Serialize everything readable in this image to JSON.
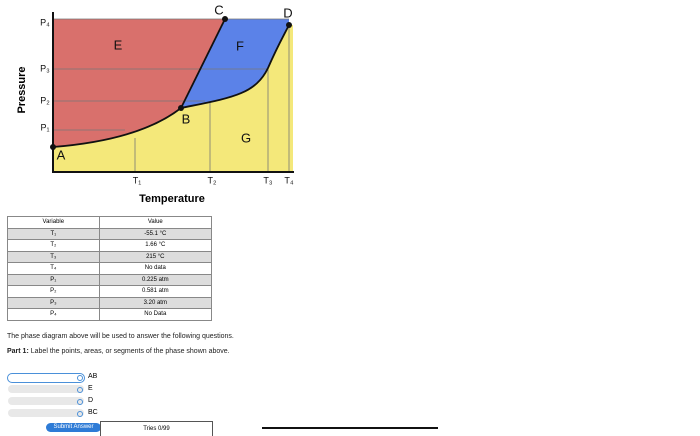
{
  "diagram": {
    "y_axis_label": "Pressure",
    "x_axis_label": "Temperature",
    "pressure_ticks": [
      "P₄",
      "P₃",
      "P₂",
      "P₁"
    ],
    "temperature_ticks": [
      "T₁",
      "T₂",
      "T₃",
      "T₄"
    ],
    "points": [
      "A",
      "B",
      "C",
      "D"
    ],
    "regions": [
      "E",
      "F",
      "G"
    ]
  },
  "table": {
    "header": [
      "Variable",
      "Value"
    ],
    "rows": [
      [
        "T₁",
        "-55.1 °C"
      ],
      [
        "T₂",
        "1.66 °C"
      ],
      [
        "T₃",
        "215 °C"
      ],
      [
        "T₄",
        "No data"
      ],
      [
        "P₁",
        "0.225 atm"
      ],
      [
        "P₂",
        "0.581 atm"
      ],
      [
        "P₃",
        "3.20 atm"
      ],
      [
        "P₄",
        "No Data"
      ]
    ]
  },
  "intro": "The phase diagram above will be used to answer the following questions.",
  "part": {
    "label": "Part 1:",
    "prompt": "Label the points, areas, or segments of the phase shown above."
  },
  "answers": [
    "AB",
    "E",
    "D",
    "BC"
  ],
  "submit": "Submit Answer",
  "tries": "Tries 0/99"
}
